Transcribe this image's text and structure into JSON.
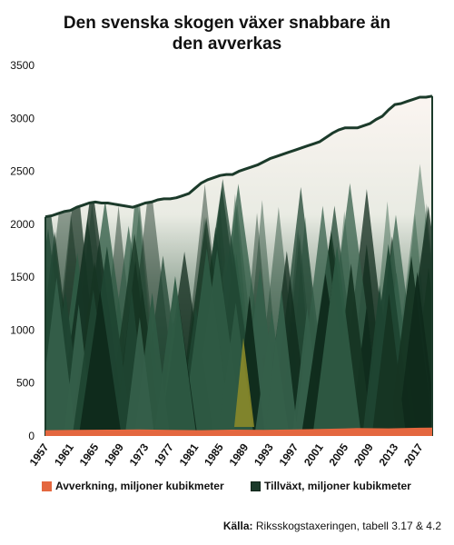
{
  "title_line1": "Den svenska skogen växer snabbare än",
  "title_line2": "den avverkas",
  "source_label": "Källa:",
  "source_text": "Riksskogstaxeringen, tabell 3.17 & 4.2",
  "colors": {
    "harvest": "#e4673f",
    "growth": "#1b3a2a",
    "forest_dark": "#173826",
    "forest_mid": "#3f6650",
    "fog": "#f7efe9"
  },
  "chart_data": {
    "type": "area",
    "title": "Den svenska skogen växer snabbare än den avverkas",
    "ylim": [
      0,
      3500
    ],
    "xlim": [
      1957,
      2019
    ],
    "yticks": [
      0,
      500,
      1000,
      1500,
      2000,
      2500,
      3000,
      3500
    ],
    "xticks": [
      1957,
      1961,
      1965,
      1969,
      1973,
      1977,
      1981,
      1985,
      1989,
      1993,
      1997,
      2001,
      2005,
      2009,
      2013,
      2017
    ],
    "legend_position": "bottom",
    "series": [
      {
        "name": "Avverkning, miljoner kubikmeter",
        "color": "#e4673f",
        "x": [
          1957,
          1962,
          1967,
          1972,
          1977,
          1982,
          1987,
          1992,
          1997,
          2002,
          2007,
          2012,
          2017,
          2019
        ],
        "values": [
          55,
          58,
          60,
          62,
          58,
          55,
          60,
          58,
          63,
          68,
          75,
          72,
          78,
          80
        ]
      },
      {
        "name": "Tillväxt, miljoner kubikmeter",
        "color": "#1b3a2a",
        "x": [
          1957,
          1958,
          1959,
          1960,
          1961,
          1962,
          1963,
          1964,
          1965,
          1966,
          1967,
          1968,
          1969,
          1970,
          1971,
          1972,
          1973,
          1974,
          1975,
          1976,
          1977,
          1978,
          1979,
          1980,
          1981,
          1982,
          1983,
          1984,
          1985,
          1986,
          1987,
          1988,
          1989,
          1990,
          1991,
          1992,
          1993,
          1994,
          1995,
          1996,
          1997,
          1998,
          1999,
          2000,
          2001,
          2002,
          2003,
          2004,
          2005,
          2006,
          2007,
          2008,
          2009,
          2010,
          2011,
          2012,
          2013,
          2014,
          2015,
          2016,
          2017,
          2018,
          2019
        ],
        "values": [
          2070,
          2080,
          2100,
          2120,
          2130,
          2160,
          2180,
          2200,
          2210,
          2200,
          2200,
          2190,
          2180,
          2170,
          2160,
          2180,
          2200,
          2210,
          2230,
          2240,
          2240,
          2250,
          2270,
          2290,
          2340,
          2390,
          2420,
          2440,
          2460,
          2470,
          2470,
          2500,
          2520,
          2540,
          2560,
          2590,
          2620,
          2640,
          2660,
          2680,
          2700,
          2720,
          2740,
          2760,
          2780,
          2820,
          2860,
          2890,
          2910,
          2910,
          2910,
          2930,
          2950,
          2990,
          3020,
          3080,
          3130,
          3140,
          3160,
          3180,
          3200,
          3200,
          3210
        ]
      }
    ]
  }
}
